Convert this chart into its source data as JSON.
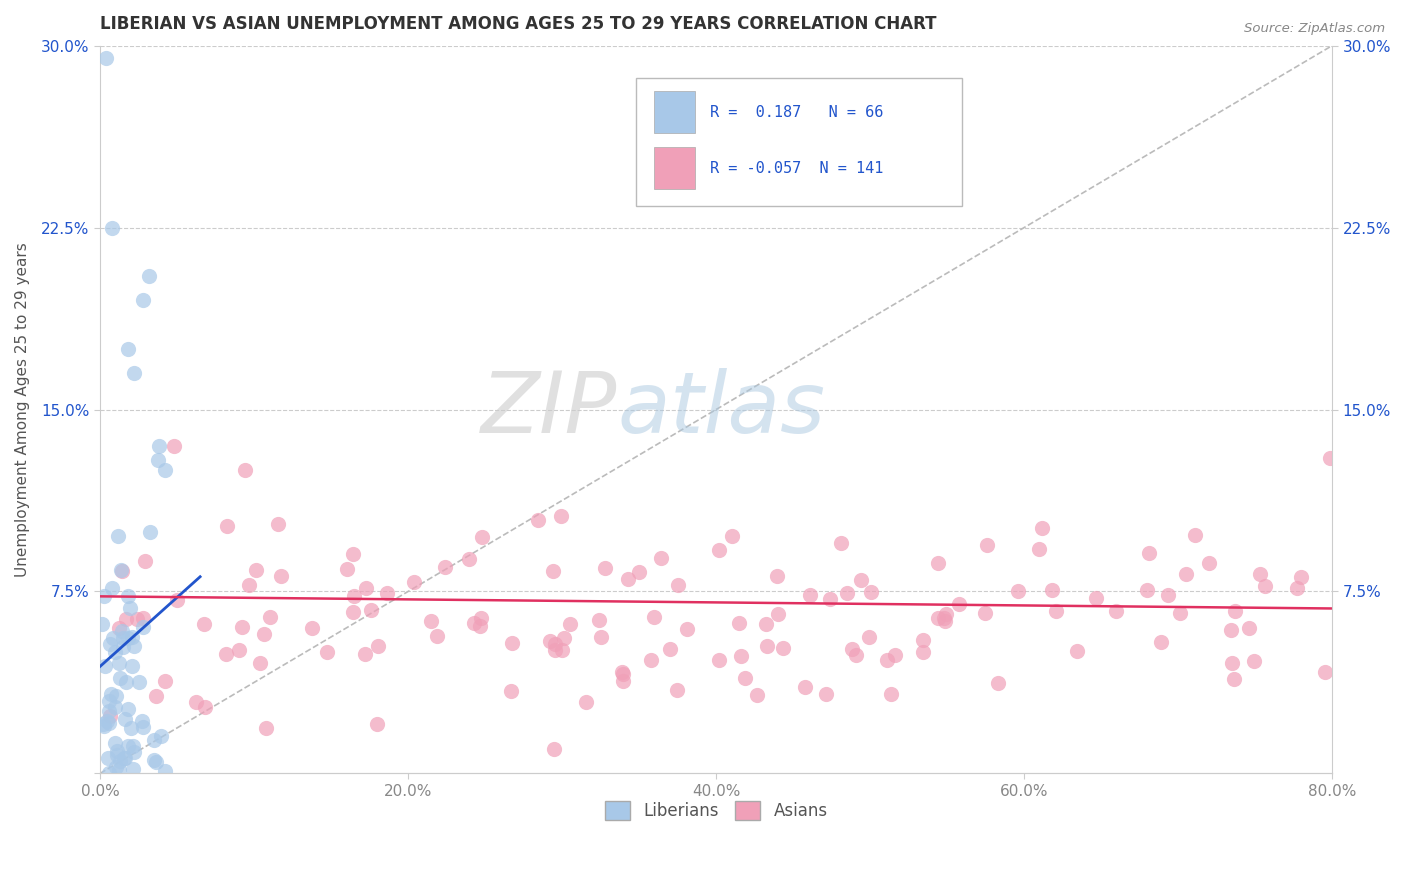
{
  "title": "LIBERIAN VS ASIAN UNEMPLOYMENT AMONG AGES 25 TO 29 YEARS CORRELATION CHART",
  "source": "Source: ZipAtlas.com",
  "xlim": [
    0.0,
    0.8
  ],
  "ylim": [
    -0.005,
    0.305
  ],
  "ylim_plot": [
    0.0,
    0.3
  ],
  "liberian_R": 0.187,
  "liberian_N": 66,
  "asian_R": -0.057,
  "asian_N": 141,
  "liberian_color": "#a8c8e8",
  "asian_color": "#f0a0b8",
  "liberian_line_color": "#2255cc",
  "asian_line_color": "#e03060",
  "diag_color": "#bbbbbb",
  "grid_color": "#cccccc",
  "tick_color_y": "#2255cc",
  "tick_color_x": "#888888",
  "ylabel": "Unemployment Among Ages 25 to 29 years",
  "xticks": [
    0.0,
    0.2,
    0.4,
    0.6,
    0.8
  ],
  "xtick_labels": [
    "0.0%",
    "20.0%",
    "40.0%",
    "60.0%",
    "80.0%"
  ],
  "yticks": [
    0.0,
    0.075,
    0.15,
    0.225,
    0.3
  ],
  "ytick_labels": [
    "0.0%",
    "7.5%",
    "15.0%",
    "22.5%",
    "30.0%"
  ]
}
